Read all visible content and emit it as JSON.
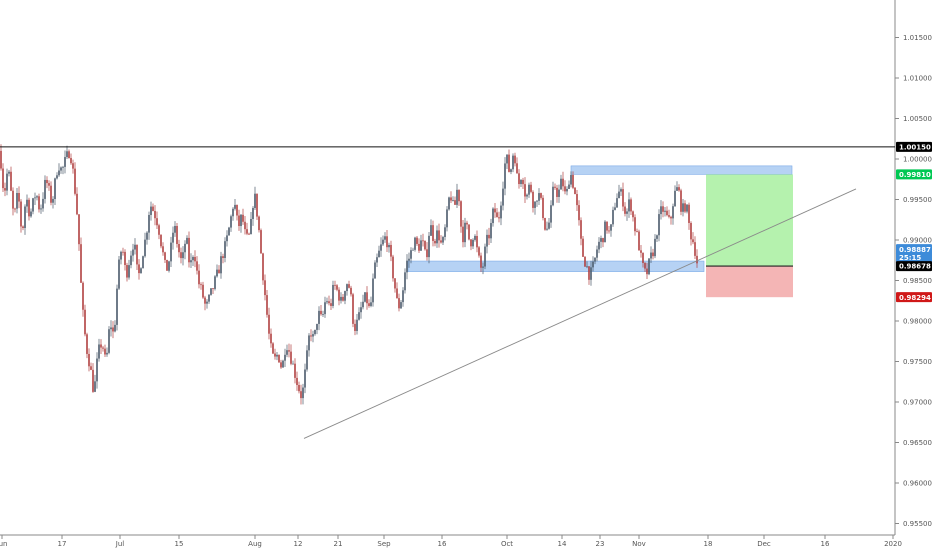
{
  "chart_data": {
    "type": "candlestick",
    "yaxis": {
      "ticks": [
        "0.95500",
        "0.96000",
        "0.96500",
        "0.97000",
        "0.97500",
        "0.98000",
        "0.98500",
        "0.99000",
        "0.99500",
        "1.00000",
        "1.00500",
        "1.01000",
        "1.01500"
      ],
      "ylim": [
        0.953,
        1.021
      ]
    },
    "xaxis": {
      "ticks": [
        "Jun",
        "17",
        "Jul",
        "15",
        "Aug",
        "12",
        "21",
        "Sep",
        "16",
        "Oct",
        "14",
        "23",
        "Nov",
        "18",
        "Dec",
        "16",
        "2020"
      ]
    },
    "price_path": [
      [
        0,
        1.001
      ],
      [
        4,
        0.9955
      ],
      [
        8,
        0.999
      ],
      [
        14,
        0.9925
      ],
      [
        18,
        0.996
      ],
      [
        22,
        0.9905
      ],
      [
        26,
        0.9955
      ],
      [
        30,
        0.993
      ],
      [
        36,
        0.996
      ],
      [
        40,
        0.9935
      ],
      [
        46,
        0.9975
      ],
      [
        52,
        0.9945
      ],
      [
        58,
        0.9995
      ],
      [
        62,
        0.9985
      ],
      [
        66,
        1.0
      ],
      [
        70,
        1.0012
      ],
      [
        74,
        0.9975
      ],
      [
        78,
        0.992
      ],
      [
        82,
        0.982
      ],
      [
        86,
        0.977
      ],
      [
        90,
        0.9745
      ],
      [
        94,
        0.971
      ],
      [
        98,
        0.976
      ],
      [
        102,
        0.9775
      ],
      [
        106,
        0.9745
      ],
      [
        110,
        0.98
      ],
      [
        114,
        0.978
      ],
      [
        118,
        0.986
      ],
      [
        122,
        0.9895
      ],
      [
        126,
        0.9855
      ],
      [
        130,
        0.988
      ],
      [
        134,
        0.99
      ],
      [
        138,
        0.985
      ],
      [
        142,
        0.988
      ],
      [
        146,
        0.9905
      ],
      [
        150,
        0.9945
      ],
      [
        154,
        0.9935
      ],
      [
        158,
        0.992
      ],
      [
        162,
        0.989
      ],
      [
        166,
        0.986
      ],
      [
        170,
        0.988
      ],
      [
        174,
        0.992
      ],
      [
        178,
        0.989
      ],
      [
        182,
        0.987
      ],
      [
        186,
        0.9905
      ],
      [
        190,
        0.9865
      ],
      [
        194,
        0.989
      ],
      [
        198,
        0.985
      ],
      [
        202,
        0.9835
      ],
      [
        206,
        0.9815
      ],
      [
        210,
        0.983
      ],
      [
        214,
        0.9845
      ],
      [
        218,
        0.986
      ],
      [
        222,
        0.988
      ],
      [
        226,
        0.9895
      ],
      [
        230,
        0.992
      ],
      [
        234,
        0.995
      ],
      [
        238,
        0.9915
      ],
      [
        242,
        0.993
      ],
      [
        246,
        0.99
      ],
      [
        250,
        0.9905
      ],
      [
        254,
        0.996
      ],
      [
        258,
        0.9925
      ],
      [
        262,
        0.987
      ],
      [
        266,
        0.982
      ],
      [
        270,
        0.977
      ],
      [
        274,
        0.975
      ],
      [
        278,
        0.976
      ],
      [
        282,
        0.974
      ],
      [
        286,
        0.9775
      ],
      [
        290,
        0.976
      ],
      [
        294,
        0.974
      ],
      [
        298,
        0.972
      ],
      [
        302,
        0.9705
      ],
      [
        306,
        0.9745
      ],
      [
        310,
        0.979
      ],
      [
        314,
        0.9775
      ],
      [
        318,
        0.981
      ],
      [
        322,
        0.98
      ],
      [
        326,
        0.983
      ],
      [
        330,
        0.9815
      ],
      [
        334,
        0.9845
      ],
      [
        338,
        0.9835
      ],
      [
        342,
        0.982
      ],
      [
        346,
        0.985
      ],
      [
        350,
        0.984
      ],
      [
        354,
        0.979
      ],
      [
        358,
        0.98
      ],
      [
        362,
        0.982
      ],
      [
        366,
        0.983
      ],
      [
        370,
        0.981
      ],
      [
        374,
        0.986
      ],
      [
        378,
        0.988
      ],
      [
        382,
        0.9895
      ],
      [
        386,
        0.9905
      ],
      [
        390,
        0.988
      ],
      [
        394,
        0.985
      ],
      [
        398,
        0.9815
      ],
      [
        402,
        0.983
      ],
      [
        406,
        0.987
      ],
      [
        410,
        0.988
      ],
      [
        414,
        0.99
      ],
      [
        418,
        0.989
      ],
      [
        422,
        0.99
      ],
      [
        426,
        0.9875
      ],
      [
        430,
        0.992
      ],
      [
        434,
        0.99
      ],
      [
        438,
        0.991
      ],
      [
        442,
        0.989
      ],
      [
        446,
        0.992
      ],
      [
        450,
        0.996
      ],
      [
        454,
        0.9935
      ],
      [
        458,
        0.997
      ],
      [
        462,
        0.99
      ],
      [
        466,
        0.992
      ],
      [
        470,
        0.9895
      ],
      [
        474,
        0.991
      ],
      [
        478,
        0.988
      ],
      [
        482,
        0.986
      ],
      [
        486,
        0.9895
      ],
      [
        490,
        0.991
      ],
      [
        494,
        0.994
      ],
      [
        498,
        0.992
      ],
      [
        502,
        0.996
      ],
      [
        506,
        1.0005
      ],
      [
        510,
        0.998
      ],
      [
        514,
        1.0015
      ],
      [
        518,
        0.9965
      ],
      [
        522,
        0.9985
      ],
      [
        526,
        0.995
      ],
      [
        530,
        0.997
      ],
      [
        534,
        0.994
      ],
      [
        538,
        0.996
      ],
      [
        542,
        0.994
      ],
      [
        546,
        0.991
      ],
      [
        550,
        0.9925
      ],
      [
        554,
        0.997
      ],
      [
        558,
        0.9955
      ],
      [
        562,
        0.9975
      ],
      [
        566,
        0.995
      ],
      [
        570,
        0.9985
      ],
      [
        574,
        0.9965
      ],
      [
        578,
        0.993
      ],
      [
        582,
        0.9885
      ],
      [
        586,
        0.987
      ],
      [
        590,
        0.9855
      ],
      [
        594,
        0.987
      ],
      [
        598,
        0.9895
      ],
      [
        602,
        0.99
      ],
      [
        606,
        0.992
      ],
      [
        610,
        0.9905
      ],
      [
        614,
        0.994
      ],
      [
        618,
        0.996
      ],
      [
        622,
        0.9955
      ],
      [
        626,
        0.993
      ],
      [
        630,
        0.995
      ],
      [
        634,
        0.992
      ],
      [
        638,
        0.99
      ],
      [
        642,
        0.987
      ],
      [
        646,
        0.9855
      ],
      [
        650,
        0.9875
      ],
      [
        654,
        0.989
      ],
      [
        658,
        0.992
      ],
      [
        662,
        0.994
      ],
      [
        666,
        0.993
      ],
      [
        670,
        0.992
      ],
      [
        674,
        0.9955
      ],
      [
        678,
        0.9965
      ],
      [
        682,
        0.9935
      ],
      [
        686,
        0.9945
      ],
      [
        690,
        0.991
      ],
      [
        694,
        0.9895
      ],
      [
        698,
        0.9866
      ]
    ],
    "annotations": {
      "resistance_level": 1.0015,
      "trendline": {
        "from": [
          304,
          0.9655
        ],
        "to": [
          856,
          0.9963
        ]
      },
      "supply_zone": {
        "x_from": 571,
        "x_to": 792,
        "y_top": 0.99915,
        "y_bottom": 0.9981
      },
      "demand_zone": {
        "x_from": 408,
        "x_to": 704,
        "y_top": 0.9874,
        "y_bottom": 0.9861
      },
      "long_position": {
        "x_from": 706,
        "x_to": 793,
        "target": 0.9981,
        "entry": 0.98678,
        "stop": 0.98294
      }
    },
    "price_labels": {
      "resistance": {
        "text": "1.00150",
        "value": 1.0015,
        "color": "#000000"
      },
      "target": {
        "text": "0.99810",
        "value": 0.9981,
        "color": "#00c853"
      },
      "last": {
        "text": "0.98887",
        "value": 0.98887,
        "color": "#3d8bd9"
      },
      "countdown": {
        "text": "25:15",
        "value": 0.98787,
        "color": "#3d8bd9"
      },
      "entry": {
        "text": "0.98678",
        "value": 0.98678,
        "color": "#000000"
      },
      "stop": {
        "text": "0.98294",
        "value": 0.98294,
        "color": "#d01818"
      }
    }
  }
}
